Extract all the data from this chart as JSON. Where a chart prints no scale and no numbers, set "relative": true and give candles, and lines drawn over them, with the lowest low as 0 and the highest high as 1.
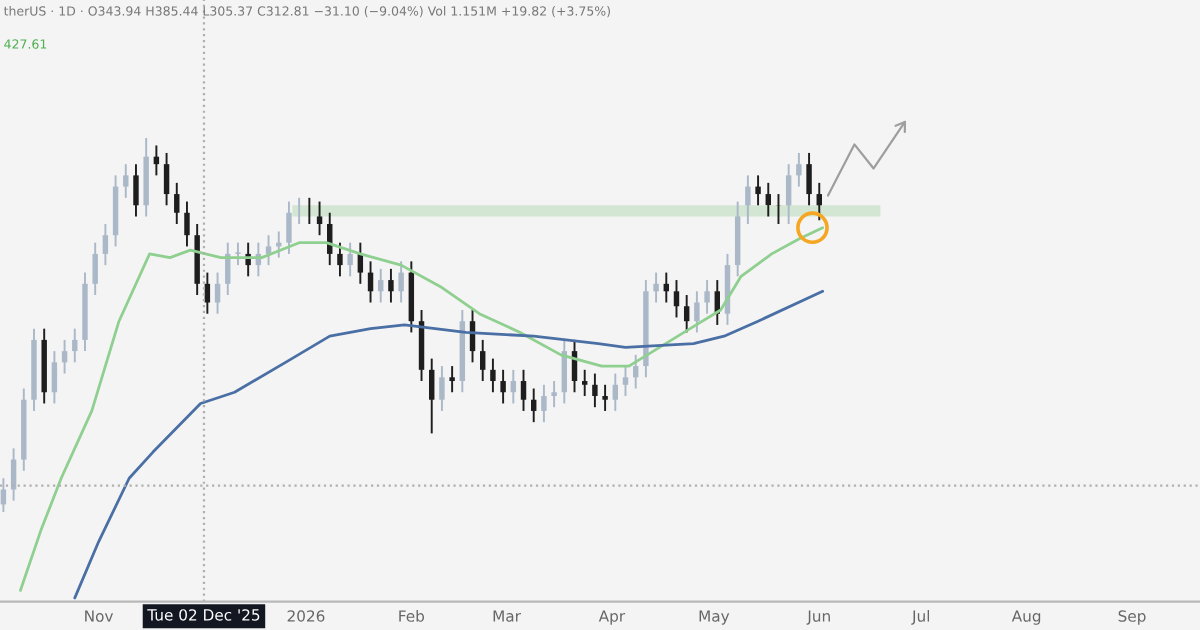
{
  "chart_data": {
    "type": "candlestick",
    "relative": true,
    "annotations": [
      "therUS · 1D · O343.94 H385.44 L305.37 C312.81 −31.10 (−9.04%) Vol 1.151M +19.82 (+3.75%)",
      "427.61"
    ],
    "xlim": [
      "2025-10-03",
      "2026-09-21"
    ],
    "xticks": [
      {
        "value": "2025-11-01",
        "label": "Nov"
      },
      {
        "value": "2026-01-01",
        "label": "2026"
      },
      {
        "value": "2026-02-01",
        "label": "Feb"
      },
      {
        "value": "2026-03-01",
        "label": "Mar"
      },
      {
        "value": "2026-04-01",
        "label": "Apr"
      },
      {
        "value": "2026-05-01",
        "label": "May"
      },
      {
        "value": "2026-06-01",
        "label": "Jun"
      },
      {
        "value": "2026-07-01",
        "label": "Jul"
      },
      {
        "value": "2026-08-01",
        "label": "Aug"
      },
      {
        "value": "2026-09-01",
        "label": "Sep"
      }
    ],
    "x": [
      "2025-10-04",
      "2025-10-07",
      "2025-10-10",
      "2025-10-13",
      "2025-10-16",
      "2025-10-19",
      "2025-10-22",
      "2025-10-25",
      "2025-10-28",
      "2025-10-31",
      "2025-11-03",
      "2025-11-06",
      "2025-11-09",
      "2025-11-12",
      "2025-11-15",
      "2025-11-18",
      "2025-11-21",
      "2025-11-24",
      "2025-11-27",
      "2025-11-30",
      "2025-12-03",
      "2025-12-06",
      "2025-12-09",
      "2025-12-12",
      "2025-12-15",
      "2025-12-18",
      "2025-12-21",
      "2025-12-24",
      "2025-12-27",
      "2025-12-30",
      "2026-01-02",
      "2026-01-05",
      "2026-01-08",
      "2026-01-11",
      "2026-01-14",
      "2026-01-17",
      "2026-01-20",
      "2026-01-23",
      "2026-01-26",
      "2026-01-29",
      "2026-02-01",
      "2026-02-04",
      "2026-02-07",
      "2026-02-10",
      "2026-02-13",
      "2026-02-16",
      "2026-02-19",
      "2026-02-22",
      "2026-02-25",
      "2026-02-28",
      "2026-03-03",
      "2026-03-06",
      "2026-03-09",
      "2026-03-12",
      "2026-03-15",
      "2026-03-18",
      "2026-03-21",
      "2026-03-24",
      "2026-03-27",
      "2026-03-30",
      "2026-04-02",
      "2026-04-05",
      "2026-04-08",
      "2026-04-11",
      "2026-04-14",
      "2026-04-17",
      "2026-04-20",
      "2026-04-23",
      "2026-04-26",
      "2026-04-29",
      "2026-05-02",
      "2026-05-05",
      "2026-05-08",
      "2026-05-11",
      "2026-05-14",
      "2026-05-17",
      "2026-05-20",
      "2026-05-23",
      "2026-05-26",
      "2026-05-29",
      "2026-06-01"
    ],
    "ohlc": [
      [
        0.02,
        0.09,
        0.0,
        0.06
      ],
      [
        0.06,
        0.17,
        0.03,
        0.14
      ],
      [
        0.14,
        0.33,
        0.11,
        0.3
      ],
      [
        0.3,
        0.49,
        0.27,
        0.46
      ],
      [
        0.46,
        0.49,
        0.29,
        0.32
      ],
      [
        0.32,
        0.43,
        0.29,
        0.4
      ],
      [
        0.4,
        0.46,
        0.37,
        0.43
      ],
      [
        0.43,
        0.49,
        0.4,
        0.46
      ],
      [
        0.46,
        0.64,
        0.43,
        0.61
      ],
      [
        0.61,
        0.72,
        0.58,
        0.69
      ],
      [
        0.69,
        0.77,
        0.66,
        0.74
      ],
      [
        0.74,
        0.9,
        0.71,
        0.87
      ],
      [
        0.87,
        0.93,
        0.84,
        0.9
      ],
      [
        0.9,
        0.93,
        0.79,
        0.82
      ],
      [
        0.82,
        1.0,
        0.79,
        0.95
      ],
      [
        0.95,
        0.98,
        0.9,
        0.93
      ],
      [
        0.93,
        0.96,
        0.82,
        0.85
      ],
      [
        0.85,
        0.88,
        0.77,
        0.8
      ],
      [
        0.8,
        0.83,
        0.71,
        0.74
      ],
      [
        0.74,
        0.77,
        0.58,
        0.61
      ],
      [
        0.61,
        0.64,
        0.53,
        0.56
      ],
      [
        0.56,
        0.64,
        0.53,
        0.61
      ],
      [
        0.61,
        0.72,
        0.58,
        0.69
      ],
      [
        0.69,
        0.72,
        0.66,
        0.69
      ],
      [
        0.69,
        0.72,
        0.63,
        0.66
      ],
      [
        0.66,
        0.72,
        0.63,
        0.69
      ],
      [
        0.69,
        0.74,
        0.66,
        0.71
      ],
      [
        0.71,
        0.75,
        0.68,
        0.72
      ],
      [
        0.72,
        0.83,
        0.69,
        0.8
      ],
      [
        0.8,
        0.84,
        0.77,
        0.81
      ],
      [
        0.81,
        0.84,
        0.77,
        0.8
      ],
      [
        0.8,
        0.83,
        0.74,
        0.77
      ],
      [
        0.77,
        0.8,
        0.66,
        0.69
      ],
      [
        0.69,
        0.72,
        0.63,
        0.66
      ],
      [
        0.66,
        0.72,
        0.63,
        0.69
      ],
      [
        0.69,
        0.72,
        0.61,
        0.64
      ],
      [
        0.64,
        0.67,
        0.56,
        0.59
      ],
      [
        0.59,
        0.65,
        0.56,
        0.62
      ],
      [
        0.62,
        0.65,
        0.56,
        0.59
      ],
      [
        0.59,
        0.67,
        0.56,
        0.64
      ],
      [
        0.64,
        0.67,
        0.48,
        0.51
      ],
      [
        0.51,
        0.54,
        0.35,
        0.38
      ],
      [
        0.38,
        0.41,
        0.21,
        0.3
      ],
      [
        0.3,
        0.39,
        0.27,
        0.36
      ],
      [
        0.36,
        0.39,
        0.32,
        0.35
      ],
      [
        0.35,
        0.54,
        0.32,
        0.51
      ],
      [
        0.51,
        0.54,
        0.4,
        0.43
      ],
      [
        0.43,
        0.46,
        0.35,
        0.38
      ],
      [
        0.38,
        0.41,
        0.32,
        0.35
      ],
      [
        0.35,
        0.38,
        0.29,
        0.32
      ],
      [
        0.32,
        0.38,
        0.29,
        0.35
      ],
      [
        0.35,
        0.38,
        0.27,
        0.3
      ],
      [
        0.3,
        0.33,
        0.24,
        0.27
      ],
      [
        0.27,
        0.34,
        0.24,
        0.31
      ],
      [
        0.31,
        0.35,
        0.28,
        0.32
      ],
      [
        0.32,
        0.46,
        0.29,
        0.43
      ],
      [
        0.43,
        0.46,
        0.32,
        0.35
      ],
      [
        0.35,
        0.38,
        0.31,
        0.34
      ],
      [
        0.34,
        0.37,
        0.28,
        0.31
      ],
      [
        0.31,
        0.34,
        0.27,
        0.3
      ],
      [
        0.3,
        0.37,
        0.27,
        0.34
      ],
      [
        0.34,
        0.39,
        0.31,
        0.36
      ],
      [
        0.36,
        0.42,
        0.33,
        0.39
      ],
      [
        0.39,
        0.62,
        0.36,
        0.59
      ],
      [
        0.59,
        0.64,
        0.56,
        0.61
      ],
      [
        0.61,
        0.64,
        0.56,
        0.59
      ],
      [
        0.59,
        0.62,
        0.52,
        0.55
      ],
      [
        0.55,
        0.58,
        0.48,
        0.51
      ],
      [
        0.51,
        0.59,
        0.48,
        0.56
      ],
      [
        0.56,
        0.62,
        0.53,
        0.59
      ],
      [
        0.59,
        0.62,
        0.5,
        0.53
      ],
      [
        0.53,
        0.69,
        0.5,
        0.66
      ],
      [
        0.66,
        0.83,
        0.63,
        0.8
      ],
      [
        0.8,
        0.9,
        0.77,
        0.87
      ],
      [
        0.87,
        0.9,
        0.82,
        0.85
      ],
      [
        0.85,
        0.88,
        0.79,
        0.82
      ],
      [
        0.82,
        0.85,
        0.77,
        0.8
      ],
      [
        0.8,
        0.93,
        0.77,
        0.9
      ],
      [
        0.9,
        0.96,
        0.87,
        0.93
      ],
      [
        0.93,
        0.96,
        0.82,
        0.85
      ],
      [
        0.85,
        0.88,
        0.78,
        0.81
      ]
    ],
    "series": [
      {
        "type": "area",
        "color": "#d3e5d3",
        "x": [
          "2025-12-28",
          "2026-06-19"
        ],
        "values": [
          null,
          null
        ],
        "lower": [
          0.79,
          0.79
        ],
        "upper": [
          0.82,
          0.82
        ]
      },
      {
        "type": "line",
        "color": "#8fcf8f",
        "x": [
          "2025-10-09",
          "2025-10-15",
          "2025-10-21",
          "2025-10-30",
          "2025-11-07",
          "2025-11-16",
          "2025-11-22",
          "2025-11-28",
          "2025-12-07",
          "2025-12-19",
          "2025-12-30",
          "2026-01-07",
          "2026-01-17",
          "2026-01-29",
          "2026-02-10",
          "2026-02-21",
          "2026-03-05",
          "2026-03-17",
          "2026-03-29",
          "2026-04-06",
          "2026-04-15",
          "2026-04-24",
          "2026-05-03",
          "2026-05-09",
          "2026-05-18",
          "2026-05-26",
          "2026-06-02"
        ],
        "values": [
          -0.21,
          -0.05,
          0.09,
          0.27,
          0.51,
          0.69,
          0.68,
          0.7,
          0.68,
          0.68,
          0.72,
          0.72,
          0.69,
          0.66,
          0.6,
          0.53,
          0.48,
          0.42,
          0.39,
          0.39,
          0.44,
          0.49,
          0.54,
          0.63,
          0.69,
          0.73,
          0.76
        ]
      },
      {
        "type": "line",
        "color": "#4a6fa5",
        "x": [
          "2025-10-25",
          "2025-11-01",
          "2025-11-10",
          "2025-11-17",
          "2025-12-01",
          "2025-12-11",
          "2025-12-26",
          "2026-01-08",
          "2026-01-20",
          "2026-01-30",
          "2026-02-17",
          "2026-03-09",
          "2026-03-28",
          "2026-04-05",
          "2026-04-25",
          "2026-05-04",
          "2026-05-14",
          "2026-06-02"
        ],
        "values": [
          -0.23,
          -0.08,
          0.09,
          0.16,
          0.29,
          0.32,
          0.4,
          0.47,
          0.49,
          0.5,
          0.48,
          0.47,
          0.45,
          0.44,
          0.45,
          0.47,
          0.51,
          0.59
        ]
      },
      {
        "type": "scatter",
        "marker": "circle",
        "color": "#f5a623",
        "x": [
          "2026-05-30"
        ],
        "values": [
          0.76
        ]
      }
    ],
    "ref_lines": [
      {
        "axis": "x",
        "value": "2025-12-02",
        "label": "Tue 02 Dec '25",
        "line_style": "dotted",
        "color": "#b0b0b0"
      },
      {
        "axis": "y",
        "value": 0.07,
        "line_style": "dotted",
        "color": "#b0b0b0"
      }
    ]
  }
}
